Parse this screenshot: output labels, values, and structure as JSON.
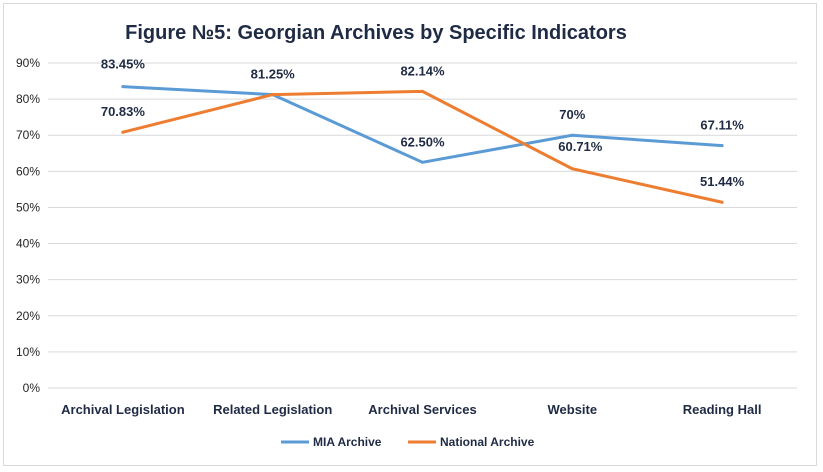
{
  "chart_data": {
    "type": "line",
    "title": "Figure №5: Georgian Archives by Specific Indicators",
    "xlabel": "",
    "ylabel": "",
    "categories": [
      "Archival Legislation",
      "Related Legislation",
      "Archival Services",
      "Website",
      "Reading Hall"
    ],
    "y_ticks": [
      "0%",
      "10%",
      "20%",
      "30%",
      "40%",
      "50%",
      "60%",
      "70%",
      "80%",
      "90%"
    ],
    "ylim": [
      0,
      90
    ],
    "grid": true,
    "legend_position": "bottom",
    "series": [
      {
        "name": "MIA Archive",
        "color": "#5b9bd5",
        "values": [
          83.45,
          81.25,
          62.5,
          70,
          67.11
        ],
        "labels": [
          "83.45%",
          "",
          "62.50%",
          "70%",
          "67.11%"
        ]
      },
      {
        "name": "National Archive",
        "color": "#ed7d31",
        "values": [
          70.83,
          81.25,
          82.14,
          60.71,
          51.44
        ],
        "labels": [
          "70.83%",
          "81.25%",
          "82.14%",
          "60.71%",
          "51.44%"
        ]
      }
    ],
    "gridline_color": "#d9d9d9"
  }
}
